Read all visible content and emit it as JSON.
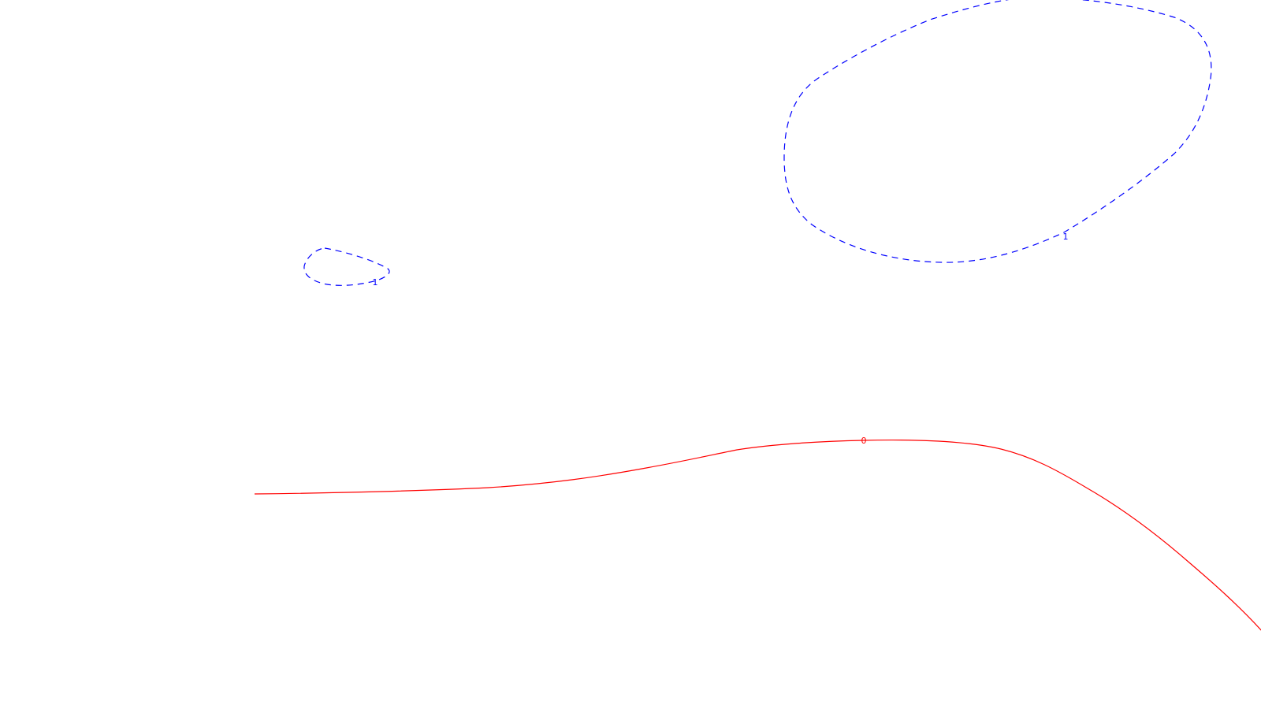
{
  "chart_data": {
    "type": "contour",
    "title": "",
    "xlabel": "",
    "ylabel": "",
    "grid": false,
    "levels": [
      {
        "level_label": "1",
        "color": "#0000ff",
        "line_style": "dashed",
        "contours": [
          {
            "id": "small-loop",
            "label_anchor": "bottom-right"
          },
          {
            "id": "large-loop",
            "label_anchor": "bottom-right"
          }
        ]
      },
      {
        "level_label": "0",
        "color": "#ff0000",
        "line_style": "solid",
        "contours": [
          {
            "id": "zero-line",
            "label_anchor": "top-center"
          }
        ]
      }
    ]
  }
}
